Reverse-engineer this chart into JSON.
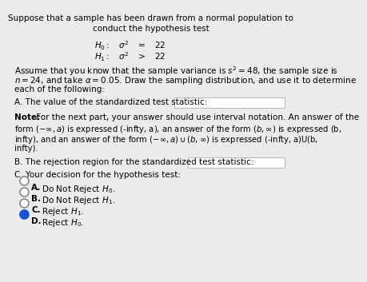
{
  "bg_color": "#ebebeb",
  "text_color": "#000000",
  "title_line1": "Suppose that a sample has been drawn from a normal population to",
  "title_line2": "conduct the hypothesis test",
  "h0_line": "$H_0: \\quad \\sigma^2 \\quad = \\quad 22$",
  "h1_line": "$H_1: \\quad \\sigma^2 \\quad > \\quad 22$",
  "body1": "Assume that you know that the sample variance is $s^2 = 48$, the sample size is",
  "body2": "$n = 24$, and take $\\alpha = 0.05$. Draw the sampling distribution, and use it to determine",
  "body3": "each of the following:",
  "partA_label": "A. The value of the standardized test statistic:",
  "note_bold": "Note:",
  "note_rest": " For the next part, your answer should use interval notation. An answer of the",
  "note_line2": "form $(-\\infty, a)$ is expressed (-infty, a), an answer of the form $(b, \\infty)$ is expressed (b,",
  "note_line3": "infty), and an answer of the form $(-\\infty, a) \\cup (b, \\infty)$ is expressed (-infty, a)U(b,",
  "note_line4": "infty).",
  "partB_label": "B. The rejection region for the standardized test statistic:",
  "partC_label": "C. Your decision for the hypothesis test:",
  "choiceA_bold": "A.",
  "choiceA_rest": " Do Not Reject $H_0$.",
  "choiceB_bold": "B.",
  "choiceB_rest": " Do Not Reject $H_1$.",
  "choiceC_bold": "C.",
  "choiceC_rest": " Reject $H_1$.",
  "choiceD_bold": "D.",
  "choiceD_rest": " Reject $H_0$.",
  "selected_choice": "D",
  "circle_color_selected": "#1a52d4",
  "circle_color_unselected": "#ffffff",
  "circle_border_selected": "#1a52d4",
  "circle_border_unselected": "#888888",
  "box_edge_color": "#bbbbbb",
  "box_face_color": "#ffffff"
}
